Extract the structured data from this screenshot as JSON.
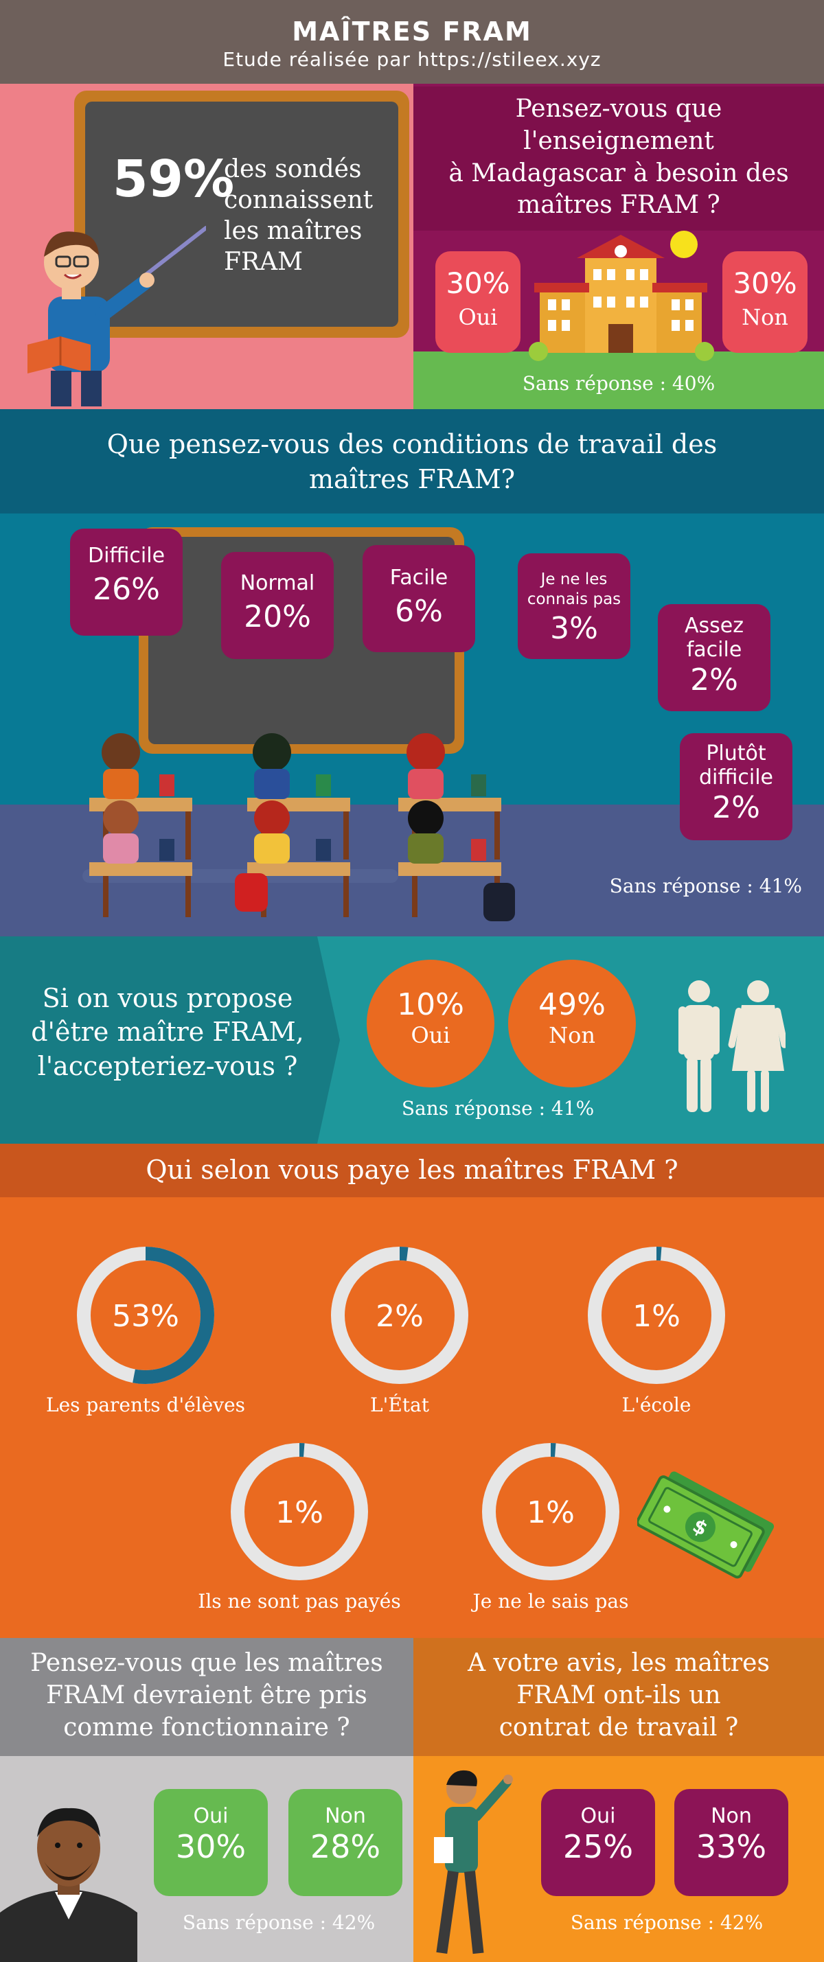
{
  "header": {
    "title": "MAÎTRES FRAM",
    "subtitle": "Etude réalisée par https://stileex.xyz"
  },
  "awareness": {
    "value": "59%",
    "text": [
      "des sondés",
      "connaissent",
      "les maîtres",
      "FRAM"
    ]
  },
  "need": {
    "question": [
      "Pensez-vous que",
      "l'enseignement",
      "à Madagascar à besoin des",
      "maîtres FRAM ?"
    ],
    "yes_value": "30%",
    "yes_label": "Oui",
    "no_value": "30%",
    "no_label": "Non",
    "no_answer": "Sans réponse : 40%"
  },
  "conditions": {
    "question": [
      "Que pensez-vous des conditions de travail des",
      "maîtres FRAM?"
    ],
    "items": [
      {
        "label": "Difficile",
        "value": "26%"
      },
      {
        "label": "Normal",
        "value": "20%"
      },
      {
        "label": "Facile",
        "value": "6%"
      },
      {
        "label": "Je ne les connais pas",
        "value": "3%"
      },
      {
        "label": "Assez facile",
        "value": "2%"
      },
      {
        "label": "Plutôt difficile",
        "value": "2%"
      }
    ],
    "no_answer": "Sans réponse : 41%"
  },
  "accept": {
    "question": [
      "Si on vous propose",
      "d'être maître FRAM,",
      "l'accepteriez-vous ?"
    ],
    "yes_value": "10%",
    "yes_label": "Oui",
    "no_value": "49%",
    "no_label": "Non",
    "no_answer": "Sans réponse : 41%"
  },
  "payer": {
    "question": "Qui selon vous paye les maîtres FRAM ?"
  },
  "civil_servant": {
    "question": [
      "Pensez-vous que les maîtres",
      "FRAM devraient être pris",
      "comme fonctionnaire ?"
    ],
    "yes_label": "Oui",
    "yes_value": "30%",
    "no_label": "Non",
    "no_value": "28%",
    "no_answer": "Sans réponse : 42%"
  },
  "contract": {
    "question": [
      "A votre avis, les maîtres",
      "FRAM ont-ils un",
      "contrat de travail ?"
    ],
    "yes_label": "Oui",
    "yes_value": "25%",
    "no_label": "Non",
    "no_value": "33%",
    "no_answer": "Sans réponse : 42%"
  },
  "colors": {
    "header": "#6e605b",
    "plum": "#8c1456",
    "teal": "#087a95",
    "orange": "#ea6a20",
    "green": "#66ba50",
    "donut_track": "#e6e6e6",
    "donut_fill": "#1b6b8a"
  },
  "chart_data": [
    {
      "type": "pie",
      "title": "Qui selon vous paye les maîtres FRAM ?",
      "categories": [
        "Les parents d'élèves",
        "L'État",
        "L'école",
        "Ils ne sont pas payés",
        "Je ne le sais pas"
      ],
      "values": [
        53,
        2,
        1,
        1,
        1
      ],
      "labels": [
        "53%",
        "2%",
        "1%",
        "1%",
        "1%"
      ]
    }
  ]
}
